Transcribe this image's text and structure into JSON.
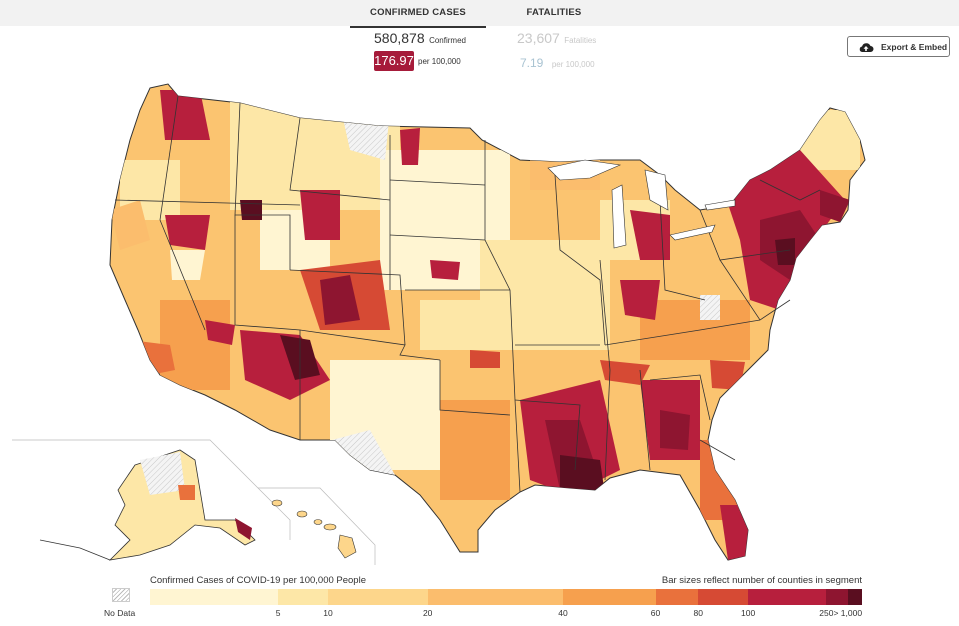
{
  "tabs": [
    {
      "label": "CONFIRMED CASES",
      "active": true
    },
    {
      "label": "FATALITIES",
      "active": false
    }
  ],
  "confirmed": {
    "count": "580,878",
    "count_label": "Confirmed",
    "rate": "176.97",
    "rate_label": "per 100,000"
  },
  "fatalities": {
    "count": "23,607",
    "count_label": "Fatalities",
    "rate": "7.19",
    "rate_label": "per 100,000"
  },
  "export_button": {
    "label": "Export & Embed",
    "icon": "cloud-upload-icon"
  },
  "legend": {
    "title": "Confirmed Cases of COVID-19 per 100,000 People",
    "note": "Bar sizes reflect number of counties in segment",
    "no_data_label": "No Data",
    "ticks": [
      "5",
      "10",
      "20",
      "40",
      "60",
      "80",
      "100",
      "250",
      "> 1,000"
    ],
    "segments": [
      {
        "color": "#fff5d2",
        "share": 0.18
      },
      {
        "color": "#fde7a7",
        "share": 0.07
      },
      {
        "color": "#fdd68b",
        "share": 0.14
      },
      {
        "color": "#fbbd6d",
        "share": 0.19
      },
      {
        "color": "#f6a04e",
        "share": 0.13
      },
      {
        "color": "#e9713c",
        "share": 0.06
      },
      {
        "color": "#d64a34",
        "share": 0.07
      },
      {
        "color": "#b71f3d",
        "share": 0.11
      },
      {
        "color": "#8e1530",
        "share": 0.03
      },
      {
        "color": "#5a0e20",
        "share": 0.02
      }
    ]
  },
  "colors": {
    "accent": "#a61b3a",
    "tab_bg": "#f2f2f2",
    "no_data": "#eeeeee",
    "state_border": "#333333"
  }
}
